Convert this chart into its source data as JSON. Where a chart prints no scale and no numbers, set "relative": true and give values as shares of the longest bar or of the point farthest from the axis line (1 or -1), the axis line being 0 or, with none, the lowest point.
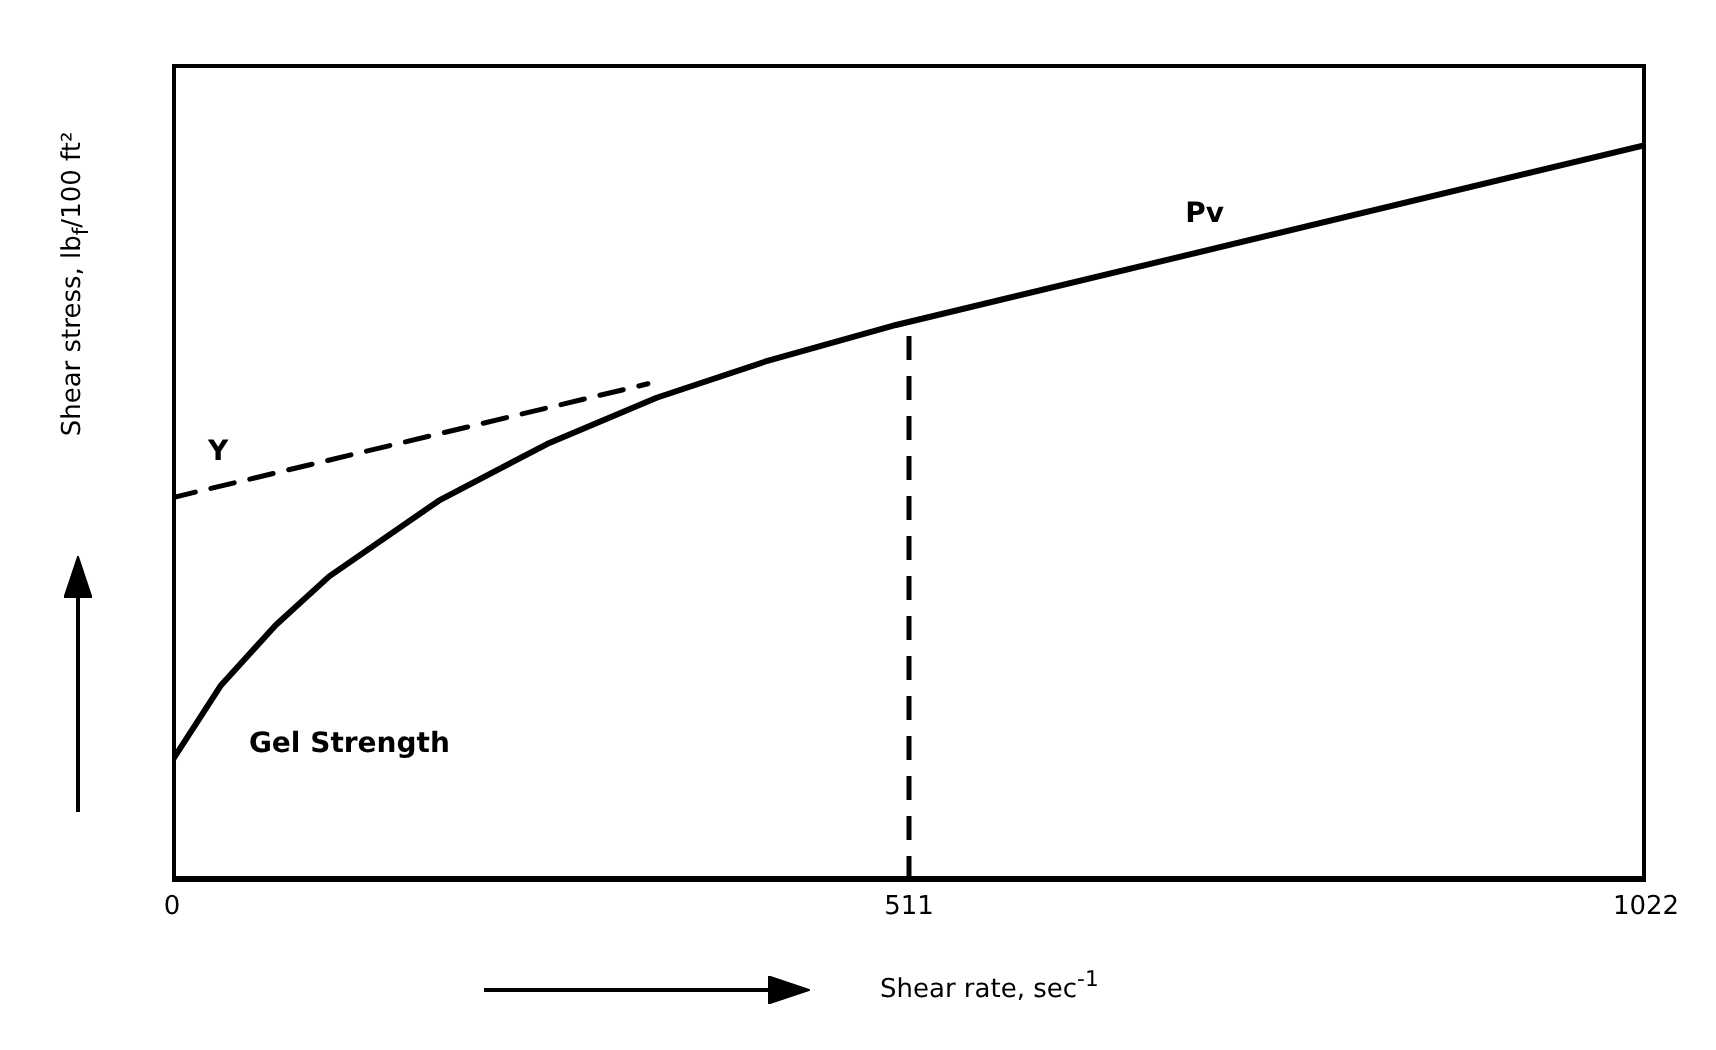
{
  "chart_data": {
    "type": "line",
    "relative": true,
    "xlabel": "Shear rate, sec$^{-1}$",
    "ylabel": "Shear stress, lb$_{f}$/100 ft²",
    "xlim": [
      0,
      1022
    ],
    "xticks": [
      0,
      511,
      1022
    ],
    "marker": "none",
    "series": [
      {
        "color": "#000000",
        "line_style": "solid",
        "x": [
          0,
          34,
          72,
          109,
          185,
          260,
          336,
          411,
          502,
          1022
        ],
        "values": [
          0.162,
          0.265,
          0.347,
          0.413,
          0.516,
          0.593,
          0.656,
          0.705,
          0.755,
          1.0
        ]
      },
      {
        "color": "#000000",
        "line_style": "dashed",
        "x": [
          0,
          330
        ],
        "values": [
          0.52,
          0.675
        ]
      }
    ],
    "ref_lines": [
      {
        "axis": "x",
        "value": 511,
        "line_style": "dashed",
        "color": "#000000"
      }
    ],
    "annotations": [
      "Y",
      "Pv",
      "Gel Strength"
    ]
  }
}
